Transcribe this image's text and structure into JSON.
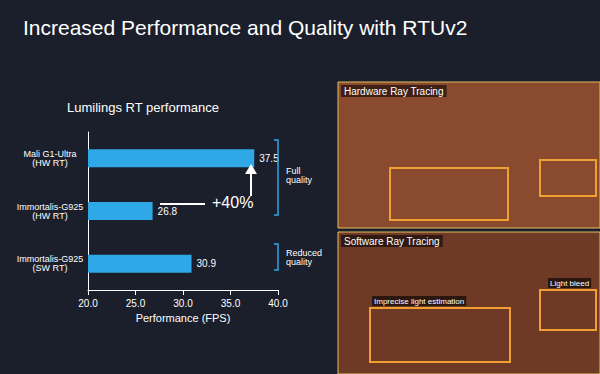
{
  "chart_data": {
    "type": "bar",
    "title": "Increased Performance and Quality with RTUv2",
    "subtitle": "Lumilings RT performance",
    "orientation": "horizontal",
    "categories": [
      "Mali G1-Ultra (HW RT)",
      "Immortalis-G925 (HW RT)",
      "Immortalis-G925 (SW RT)"
    ],
    "values": [
      37.5,
      26.8,
      30.9
    ],
    "color": "#2ea8e6",
    "xlabel": "Performance (FPS)",
    "xlim": [
      20,
      40
    ],
    "xticks": [
      {
        "value": 20,
        "label": "20.0"
      },
      {
        "value": 25,
        "label": "25.0"
      },
      {
        "value": 30,
        "label": "30.0"
      },
      {
        "value": 35,
        "label": "35.0"
      },
      {
        "value": 40,
        "label": "40.0"
      }
    ],
    "grid": false,
    "data_labels": true,
    "annotations": [
      "+40%",
      "Full quality",
      "Reduced quality",
      "Hardware Ray Tracing",
      "Software Ray Tracing",
      "Imprecise light estimation",
      "Light bleed"
    ]
  }
}
